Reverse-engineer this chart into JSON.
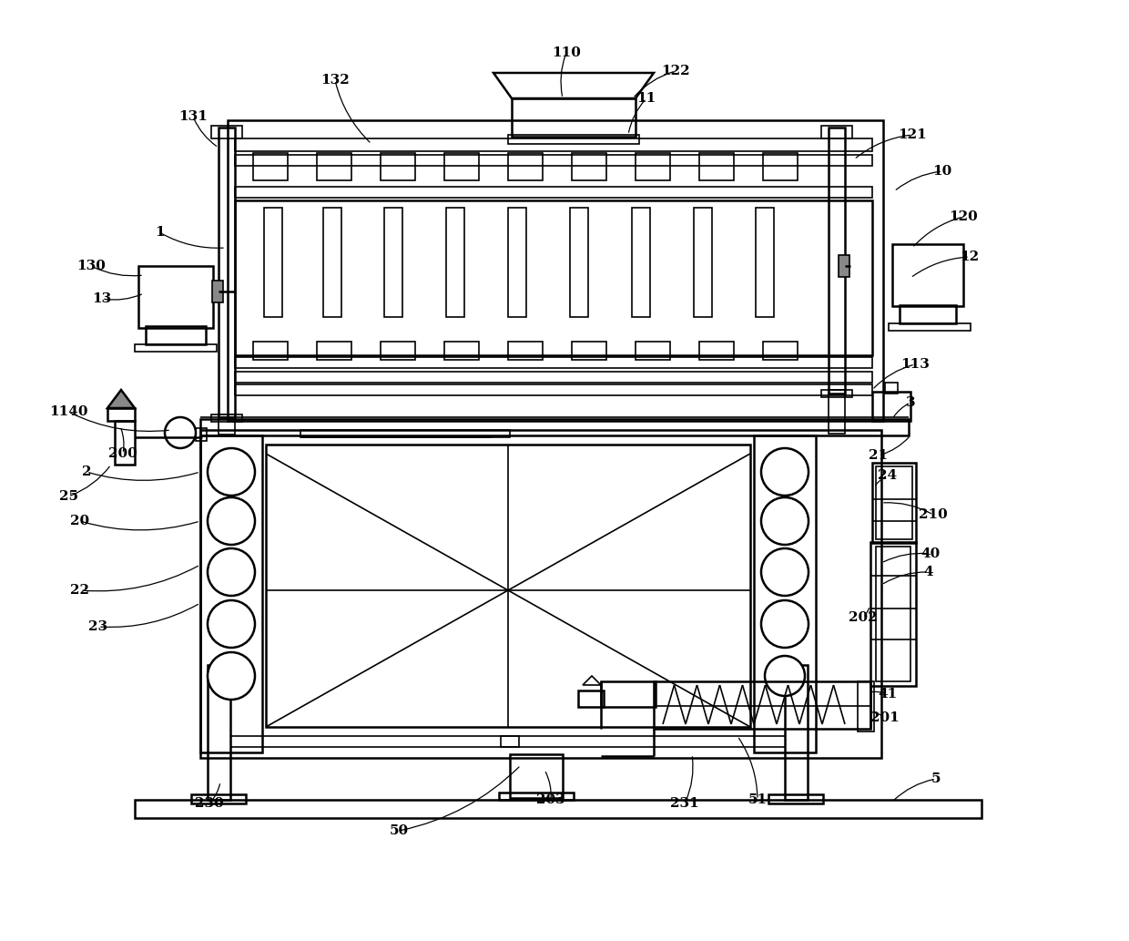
{
  "bg_color": "#ffffff",
  "line_color": "#000000",
  "lw_thin": 1.2,
  "lw_med": 1.8,
  "lw_thick": 2.5,
  "annotations": [
    [
      "1",
      175,
      255,
      248,
      272
    ],
    [
      "10",
      1035,
      188,
      982,
      210
    ],
    [
      "11",
      710,
      108,
      690,
      148
    ],
    [
      "12",
      1065,
      282,
      1000,
      305
    ],
    [
      "13",
      112,
      328,
      158,
      322
    ],
    [
      "20",
      88,
      572,
      220,
      572
    ],
    [
      "21",
      965,
      500,
      1000,
      478
    ],
    [
      "22",
      88,
      648,
      220,
      620
    ],
    [
      "23",
      108,
      688,
      220,
      662
    ],
    [
      "24",
      975,
      522,
      960,
      535
    ],
    [
      "25",
      75,
      545,
      122,
      510
    ],
    [
      "2",
      95,
      518,
      220,
      518
    ],
    [
      "3",
      1000,
      442,
      980,
      460
    ],
    [
      "4",
      1020,
      628,
      968,
      642
    ],
    [
      "5",
      1028,
      855,
      980,
      880
    ],
    [
      "40",
      1022,
      608,
      968,
      618
    ],
    [
      "41",
      975,
      762,
      955,
      760
    ],
    [
      "50",
      438,
      912,
      572,
      840
    ],
    [
      "51",
      832,
      878,
      810,
      808
    ],
    [
      "110",
      622,
      58,
      618,
      108
    ],
    [
      "113",
      1005,
      400,
      958,
      428
    ],
    [
      "120",
      1058,
      238,
      1002,
      272
    ],
    [
      "121",
      1002,
      148,
      938,
      175
    ],
    [
      "122",
      742,
      78,
      695,
      108
    ],
    [
      "130",
      100,
      292,
      158,
      302
    ],
    [
      "131",
      212,
      128,
      240,
      162
    ],
    [
      "132",
      368,
      88,
      408,
      158
    ],
    [
      "200",
      135,
      498,
      132,
      468
    ],
    [
      "201",
      972,
      788,
      958,
      782
    ],
    [
      "202",
      948,
      678,
      955,
      665
    ],
    [
      "203",
      605,
      878,
      598,
      845
    ],
    [
      "210",
      1025,
      565,
      968,
      552
    ],
    [
      "230",
      230,
      882,
      242,
      858
    ],
    [
      "231",
      752,
      882,
      760,
      828
    ],
    [
      "1140",
      75,
      452,
      188,
      472
    ]
  ]
}
